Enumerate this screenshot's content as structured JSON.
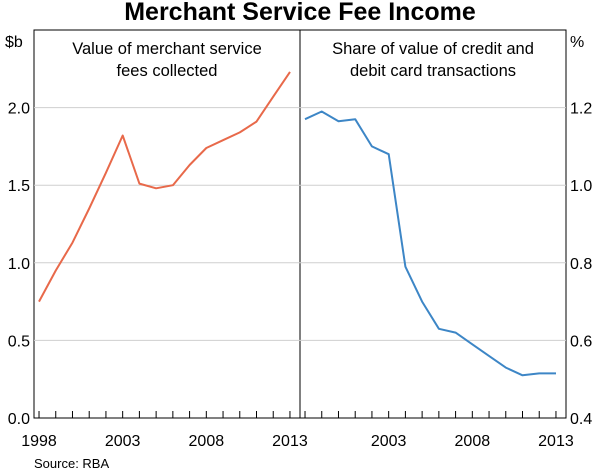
{
  "chart_data": {
    "title": "Merchant Service Fee Income",
    "source": "Source: RBA",
    "panels": [
      {
        "type": "line",
        "label": [
          "Value of merchant service",
          "fees collected"
        ],
        "unit": "$b",
        "axis": "left",
        "ylim": [
          0,
          2.5
        ],
        "yticks": [
          0.0,
          0.5,
          1.0,
          1.5,
          2.0
        ],
        "ytick_labels": [
          "0.0",
          "0.5",
          "1.0",
          "1.5",
          "2.0"
        ],
        "xlim": [
          1997.7,
          2013.6
        ],
        "xtick_labels": [
          {
            "x": 1998,
            "label": "1998"
          },
          {
            "x": 2003,
            "label": "2003"
          },
          {
            "x": 2008,
            "label": "2008"
          },
          {
            "x": 2013,
            "label": "2013"
          }
        ],
        "color": "#e8694a",
        "series": [
          {
            "name": "Value of merchant service fees collected",
            "x": [
              1998,
              1999,
              2000,
              2001,
              2002,
              2003,
              2004,
              2005,
              2006,
              2007,
              2008,
              2009,
              2010,
              2011,
              2012,
              2013
            ],
            "y": [
              0.75,
              0.95,
              1.13,
              1.35,
              1.58,
              1.82,
              1.51,
              1.48,
              1.5,
              1.63,
              1.74,
              1.79,
              1.84,
              1.91,
              2.07,
              2.23
            ]
          }
        ]
      },
      {
        "type": "line",
        "label": [
          "Share of value of credit and",
          "debit card transactions"
        ],
        "unit": "%",
        "axis": "right",
        "ylim": [
          0.4,
          1.4
        ],
        "yticks": [
          0.4,
          0.6,
          0.8,
          1.0,
          1.2
        ],
        "ytick_labels": [
          "0.4",
          "0.6",
          "0.8",
          "1.0",
          "1.2"
        ],
        "xlim": [
          1997.7,
          2013.6
        ],
        "xtick_labels": [
          {
            "x": 2003,
            "label": "2003"
          },
          {
            "x": 2008,
            "label": "2008"
          },
          {
            "x": 2013,
            "label": "2013"
          }
        ],
        "color": "#3d86c6",
        "series": [
          {
            "name": "Share of value of credit and debit card transactions",
            "x": [
              1998,
              1999,
              2000,
              2001,
              2002,
              2003,
              2004,
              2005,
              2006,
              2007,
              2008,
              2009,
              2010,
              2011,
              2012,
              2013
            ],
            "y": [
              1.17,
              1.19,
              1.165,
              1.17,
              1.1,
              1.08,
              0.79,
              0.7,
              0.63,
              0.62,
              0.59,
              0.56,
              0.53,
              0.51,
              0.515,
              0.515
            ]
          }
        ]
      }
    ]
  }
}
